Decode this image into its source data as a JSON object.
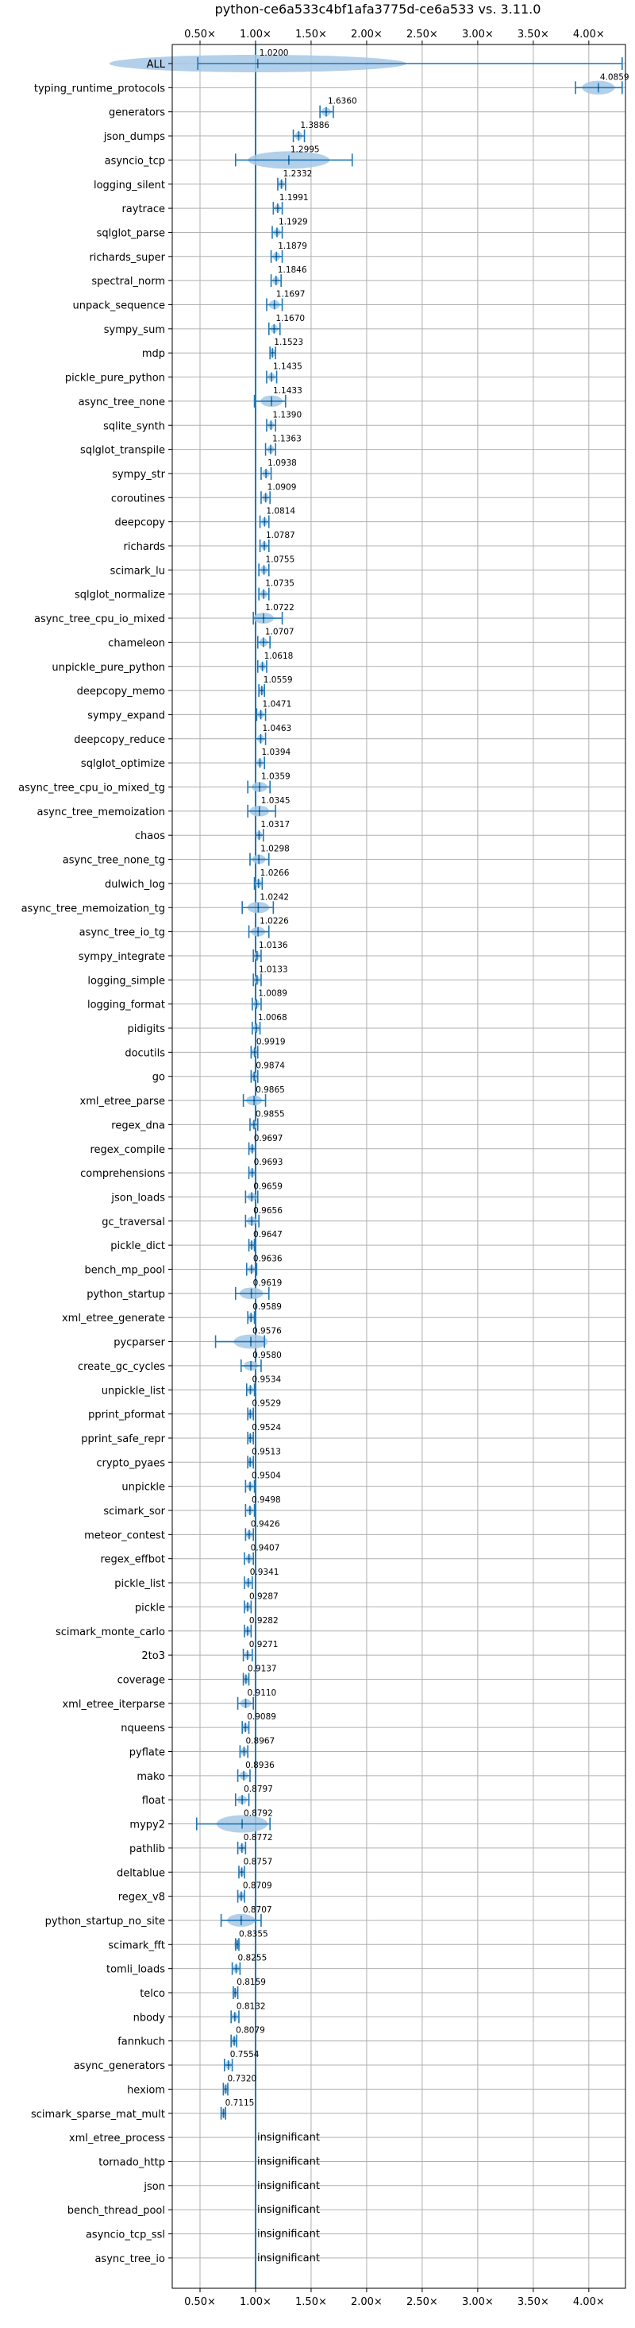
{
  "title": "python-ce6a533c4bf1afa3775d-ce6a533 vs. 3.11.0",
  "colors": {
    "accent": "#1f77b4",
    "violin_fill": "#a6c8e6",
    "grid": "#b0b0b0",
    "axis": "#000000"
  },
  "chart_data": {
    "type": "violin",
    "title": "python-ce6a533c4bf1afa3775d-ce6a533 vs. 3.11.0",
    "xlim": [
      0.25,
      4.33
    ],
    "xticks": [
      0.5,
      1.0,
      1.5,
      2.0,
      2.5,
      3.0,
      3.5,
      4.0
    ],
    "xtick_labels": [
      "0.50×",
      "1.00×",
      "1.50×",
      "2.00×",
      "2.50×",
      "3.00×",
      "3.50×",
      "4.00×"
    ],
    "ticks_on_top_and_bottom": true,
    "grid": true,
    "reference_line_x": 1.0,
    "benchmarks": [
      {
        "name": "ALL",
        "value": 1.02,
        "label": "1.0200",
        "min": 0.48,
        "max": 4.3
      },
      {
        "name": "typing_runtime_protocols",
        "value": 4.0859,
        "label": "4.0859",
        "min": 3.88,
        "max": 4.3
      },
      {
        "name": "generators",
        "value": 1.636,
        "label": "1.6360",
        "min": 1.58,
        "max": 1.7
      },
      {
        "name": "json_dumps",
        "value": 1.3886,
        "label": "1.3886",
        "min": 1.34,
        "max": 1.44
      },
      {
        "name": "asyncio_tcp",
        "value": 1.2995,
        "label": "1.2995",
        "min": 0.82,
        "max": 1.87
      },
      {
        "name": "logging_silent",
        "value": 1.2332,
        "label": "1.2332",
        "min": 1.2,
        "max": 1.27
      },
      {
        "name": "raytrace",
        "value": 1.1991,
        "label": "1.1991",
        "min": 1.16,
        "max": 1.24
      },
      {
        "name": "sqlglot_parse",
        "value": 1.1929,
        "label": "1.1929",
        "min": 1.15,
        "max": 1.24
      },
      {
        "name": "richards_super",
        "value": 1.1879,
        "label": "1.1879",
        "min": 1.14,
        "max": 1.24
      },
      {
        "name": "spectral_norm",
        "value": 1.1846,
        "label": "1.1846",
        "min": 1.14,
        "max": 1.23
      },
      {
        "name": "unpack_sequence",
        "value": 1.1697,
        "label": "1.1697",
        "min": 1.1,
        "max": 1.24
      },
      {
        "name": "sympy_sum",
        "value": 1.167,
        "label": "1.1670",
        "min": 1.12,
        "max": 1.22
      },
      {
        "name": "mdp",
        "value": 1.1523,
        "label": "1.1523",
        "min": 1.13,
        "max": 1.18
      },
      {
        "name": "pickle_pure_python",
        "value": 1.1435,
        "label": "1.1435",
        "min": 1.1,
        "max": 1.19
      },
      {
        "name": "async_tree_none",
        "value": 1.1433,
        "label": "1.1433",
        "min": 0.99,
        "max": 1.27
      },
      {
        "name": "sqlite_synth",
        "value": 1.139,
        "label": "1.1390",
        "min": 1.1,
        "max": 1.18
      },
      {
        "name": "sqlglot_transpile",
        "value": 1.1363,
        "label": "1.1363",
        "min": 1.09,
        "max": 1.18
      },
      {
        "name": "sympy_str",
        "value": 1.0938,
        "label": "1.0938",
        "min": 1.05,
        "max": 1.14
      },
      {
        "name": "coroutines",
        "value": 1.0909,
        "label": "1.0909",
        "min": 1.05,
        "max": 1.13
      },
      {
        "name": "deepcopy",
        "value": 1.0814,
        "label": "1.0814",
        "min": 1.04,
        "max": 1.12
      },
      {
        "name": "richards",
        "value": 1.0787,
        "label": "1.0787",
        "min": 1.04,
        "max": 1.12
      },
      {
        "name": "scimark_lu",
        "value": 1.0755,
        "label": "1.0755",
        "min": 1.03,
        "max": 1.12
      },
      {
        "name": "sqlglot_normalize",
        "value": 1.0735,
        "label": "1.0735",
        "min": 1.03,
        "max": 1.12
      },
      {
        "name": "async_tree_cpu_io_mixed",
        "value": 1.0722,
        "label": "1.0722",
        "min": 0.98,
        "max": 1.24
      },
      {
        "name": "chameleon",
        "value": 1.0707,
        "label": "1.0707",
        "min": 1.02,
        "max": 1.13
      },
      {
        "name": "unpickle_pure_python",
        "value": 1.0618,
        "label": "1.0618",
        "min": 1.02,
        "max": 1.1
      },
      {
        "name": "deepcopy_memo",
        "value": 1.0559,
        "label": "1.0559",
        "min": 1.03,
        "max": 1.08
      },
      {
        "name": "sympy_expand",
        "value": 1.0471,
        "label": "1.0471",
        "min": 1.01,
        "max": 1.09
      },
      {
        "name": "deepcopy_reduce",
        "value": 1.0463,
        "label": "1.0463",
        "min": 1.0,
        "max": 1.09
      },
      {
        "name": "sqlglot_optimize",
        "value": 1.0394,
        "label": "1.0394",
        "min": 1.0,
        "max": 1.08
      },
      {
        "name": "async_tree_cpu_io_mixed_tg",
        "value": 1.0359,
        "label": "1.0359",
        "min": 0.93,
        "max": 1.13
      },
      {
        "name": "async_tree_memoization",
        "value": 1.0345,
        "label": "1.0345",
        "min": 0.93,
        "max": 1.18
      },
      {
        "name": "chaos",
        "value": 1.0317,
        "label": "1.0317",
        "min": 1.0,
        "max": 1.07
      },
      {
        "name": "async_tree_none_tg",
        "value": 1.0298,
        "label": "1.0298",
        "min": 0.95,
        "max": 1.12
      },
      {
        "name": "dulwich_log",
        "value": 1.0266,
        "label": "1.0266",
        "min": 0.99,
        "max": 1.06
      },
      {
        "name": "async_tree_memoization_tg",
        "value": 1.0242,
        "label": "1.0242",
        "min": 0.88,
        "max": 1.16
      },
      {
        "name": "async_tree_io_tg",
        "value": 1.0226,
        "label": "1.0226",
        "min": 0.94,
        "max": 1.12
      },
      {
        "name": "sympy_integrate",
        "value": 1.0136,
        "label": "1.0136",
        "min": 0.98,
        "max": 1.05
      },
      {
        "name": "logging_simple",
        "value": 1.0133,
        "label": "1.0133",
        "min": 0.98,
        "max": 1.05
      },
      {
        "name": "logging_format",
        "value": 1.0089,
        "label": "1.0089",
        "min": 0.97,
        "max": 1.05
      },
      {
        "name": "pidigits",
        "value": 1.0068,
        "label": "1.0068",
        "min": 0.97,
        "max": 1.04
      },
      {
        "name": "docutils",
        "value": 0.9919,
        "label": "0.9919",
        "min": 0.96,
        "max": 1.02
      },
      {
        "name": "go",
        "value": 0.9874,
        "label": "0.9874",
        "min": 0.96,
        "max": 1.02
      },
      {
        "name": "xml_etree_parse",
        "value": 0.9865,
        "label": "0.9865",
        "min": 0.89,
        "max": 1.09
      },
      {
        "name": "regex_dna",
        "value": 0.9855,
        "label": "0.9855",
        "min": 0.95,
        "max": 1.02
      },
      {
        "name": "regex_compile",
        "value": 0.9697,
        "label": "0.9697",
        "min": 0.94,
        "max": 1.0
      },
      {
        "name": "comprehensions",
        "value": 0.9693,
        "label": "0.9693",
        "min": 0.94,
        "max": 1.0
      },
      {
        "name": "json_loads",
        "value": 0.9659,
        "label": "0.9659",
        "min": 0.91,
        "max": 1.02
      },
      {
        "name": "gc_traversal",
        "value": 0.9656,
        "label": "0.9656",
        "min": 0.91,
        "max": 1.03
      },
      {
        "name": "pickle_dict",
        "value": 0.9647,
        "label": "0.9647",
        "min": 0.94,
        "max": 0.99
      },
      {
        "name": "bench_mp_pool",
        "value": 0.9636,
        "label": "0.9636",
        "min": 0.92,
        "max": 1.01
      },
      {
        "name": "python_startup",
        "value": 0.9619,
        "label": "0.9619",
        "min": 0.82,
        "max": 1.12
      },
      {
        "name": "xml_etree_generate",
        "value": 0.9589,
        "label": "0.9589",
        "min": 0.93,
        "max": 0.99
      },
      {
        "name": "pycparser",
        "value": 0.9576,
        "label": "0.9576",
        "min": 0.64,
        "max": 1.08
      },
      {
        "name": "create_gc_cycles",
        "value": 0.958,
        "label": "0.9580",
        "min": 0.87,
        "max": 1.05
      },
      {
        "name": "unpickle_list",
        "value": 0.9534,
        "label": "0.9534",
        "min": 0.92,
        "max": 0.99
      },
      {
        "name": "pprint_pformat",
        "value": 0.9529,
        "label": "0.9529",
        "min": 0.93,
        "max": 0.98
      },
      {
        "name": "pprint_safe_repr",
        "value": 0.9524,
        "label": "0.9524",
        "min": 0.93,
        "max": 0.98
      },
      {
        "name": "crypto_pyaes",
        "value": 0.9513,
        "label": "0.9513",
        "min": 0.93,
        "max": 0.98
      },
      {
        "name": "unpickle",
        "value": 0.9504,
        "label": "0.9504",
        "min": 0.91,
        "max": 0.99
      },
      {
        "name": "scimark_sor",
        "value": 0.9498,
        "label": "0.9498",
        "min": 0.91,
        "max": 0.99
      },
      {
        "name": "meteor_contest",
        "value": 0.9426,
        "label": "0.9426",
        "min": 0.91,
        "max": 0.98
      },
      {
        "name": "regex_effbot",
        "value": 0.9407,
        "label": "0.9407",
        "min": 0.9,
        "max": 0.98
      },
      {
        "name": "pickle_list",
        "value": 0.9341,
        "label": "0.9341",
        "min": 0.9,
        "max": 0.97
      },
      {
        "name": "pickle",
        "value": 0.9287,
        "label": "0.9287",
        "min": 0.9,
        "max": 0.96
      },
      {
        "name": "scimark_monte_carlo",
        "value": 0.9282,
        "label": "0.9282",
        "min": 0.9,
        "max": 0.96
      },
      {
        "name": "2to3",
        "value": 0.9271,
        "label": "0.9271",
        "min": 0.89,
        "max": 0.97
      },
      {
        "name": "coverage",
        "value": 0.9137,
        "label": "0.9137",
        "min": 0.89,
        "max": 0.94
      },
      {
        "name": "xml_etree_iterparse",
        "value": 0.911,
        "label": "0.9110",
        "min": 0.84,
        "max": 0.98
      },
      {
        "name": "nqueens",
        "value": 0.9089,
        "label": "0.9089",
        "min": 0.88,
        "max": 0.94
      },
      {
        "name": "pyflate",
        "value": 0.8967,
        "label": "0.8967",
        "min": 0.86,
        "max": 0.93
      },
      {
        "name": "mako",
        "value": 0.8936,
        "label": "0.8936",
        "min": 0.84,
        "max": 0.95
      },
      {
        "name": "float",
        "value": 0.8797,
        "label": "0.8797",
        "min": 0.82,
        "max": 0.94
      },
      {
        "name": "mypy2",
        "value": 0.8792,
        "label": "0.8792",
        "min": 0.47,
        "max": 1.13
      },
      {
        "name": "pathlib",
        "value": 0.8772,
        "label": "0.8772",
        "min": 0.84,
        "max": 0.91
      },
      {
        "name": "deltablue",
        "value": 0.8757,
        "label": "0.8757",
        "min": 0.85,
        "max": 0.9
      },
      {
        "name": "regex_v8",
        "value": 0.8709,
        "label": "0.8709",
        "min": 0.84,
        "max": 0.9
      },
      {
        "name": "python_startup_no_site",
        "value": 0.8707,
        "label": "0.8707",
        "min": 0.69,
        "max": 1.05
      },
      {
        "name": "scimark_fft",
        "value": 0.8355,
        "label": "0.8355",
        "min": 0.82,
        "max": 0.85
      },
      {
        "name": "tomli_loads",
        "value": 0.8255,
        "label": "0.8255",
        "min": 0.79,
        "max": 0.86
      },
      {
        "name": "telco",
        "value": 0.8159,
        "label": "0.8159",
        "min": 0.8,
        "max": 0.84
      },
      {
        "name": "nbody",
        "value": 0.8132,
        "label": "0.8132",
        "min": 0.78,
        "max": 0.85
      },
      {
        "name": "fannkuch",
        "value": 0.8079,
        "label": "0.8079",
        "min": 0.78,
        "max": 0.83
      },
      {
        "name": "async_generators",
        "value": 0.7554,
        "label": "0.7554",
        "min": 0.72,
        "max": 0.79
      },
      {
        "name": "hexiom",
        "value": 0.732,
        "label": "0.7320",
        "min": 0.71,
        "max": 0.75
      },
      {
        "name": "scimark_sparse_mat_mult",
        "value": 0.7115,
        "label": "0.7115",
        "min": 0.69,
        "max": 0.73
      },
      {
        "name": "xml_etree_process",
        "value": null,
        "label": "insignificant"
      },
      {
        "name": "tornado_http",
        "value": null,
        "label": "insignificant"
      },
      {
        "name": "json",
        "value": null,
        "label": "insignificant"
      },
      {
        "name": "bench_thread_pool",
        "value": null,
        "label": "insignificant"
      },
      {
        "name": "asyncio_tcp_ssl",
        "value": null,
        "label": "insignificant"
      },
      {
        "name": "async_tree_io",
        "value": null,
        "label": "insignificant"
      }
    ]
  }
}
